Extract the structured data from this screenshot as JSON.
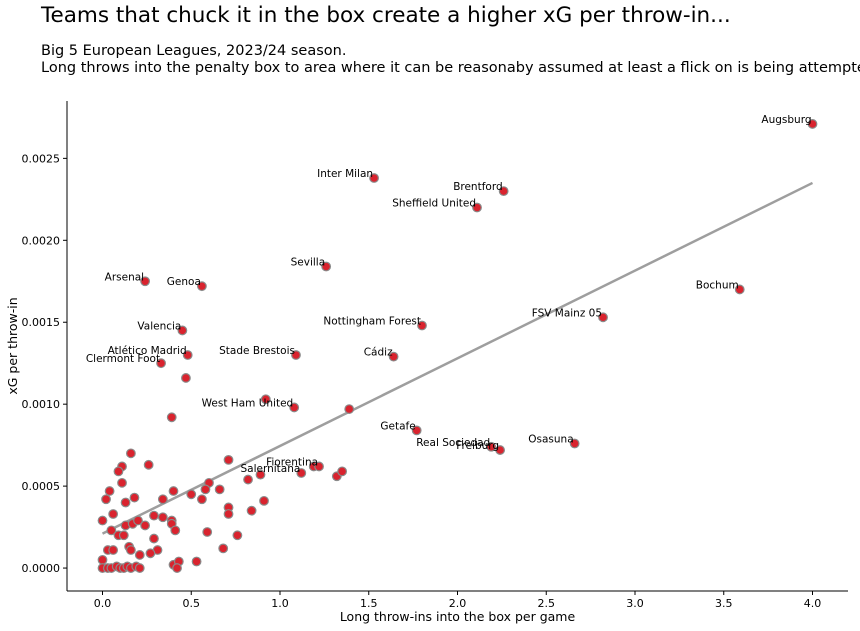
{
  "header": {
    "title": "Teams that chuck it in the box create a higher xG per throw-in...",
    "subtitle_line1": "Big 5 European Leagues, 2023/24 season.",
    "subtitle_line2": "Long throws into the penalty box to area where it can be reasonaby assumed at least a flick on is being attempted."
  },
  "colors": {
    "point_fill": "#d9232e",
    "point_edge": "#8a8a8a",
    "trend": "#9e9e9e"
  },
  "chart_data": {
    "type": "scatter",
    "title": "Teams that chuck it in the box create a higher xG per throw-in...",
    "xlabel": "Long throw-ins into the box per game",
    "ylabel": "xG per throw-in",
    "xlim": [
      -0.2,
      4.2
    ],
    "ylim": [
      -0.00014,
      0.00285
    ],
    "x_ticks": [
      "0.0",
      "0.5",
      "1.0",
      "1.5",
      "2.0",
      "2.5",
      "3.0",
      "3.5",
      "4.0"
    ],
    "y_ticks": [
      "0.0000",
      "0.0005",
      "0.0010",
      "0.0015",
      "0.0020",
      "0.0025"
    ],
    "grid": false,
    "trend_line": {
      "x": [
        0.0,
        4.0
      ],
      "y": [
        0.00021,
        0.00235
      ]
    },
    "labeled_points": [
      {
        "name": "Augsburg",
        "x": 4.0,
        "y": 0.00271
      },
      {
        "name": "Inter Milan",
        "x": 1.53,
        "y": 0.00238
      },
      {
        "name": "Brentford",
        "x": 2.26,
        "y": 0.0023
      },
      {
        "name": "Sheffield United",
        "x": 2.11,
        "y": 0.0022
      },
      {
        "name": "Sevilla",
        "x": 1.26,
        "y": 0.00184
      },
      {
        "name": "Arsenal",
        "x": 0.24,
        "y": 0.00175
      },
      {
        "name": "Genoa",
        "x": 0.56,
        "y": 0.00172
      },
      {
        "name": "Bochum",
        "x": 3.59,
        "y": 0.0017
      },
      {
        "name": "FSV Mainz 05",
        "x": 2.82,
        "y": 0.00153
      },
      {
        "name": "Nottingham Forest",
        "x": 1.8,
        "y": 0.00148
      },
      {
        "name": "Valencia",
        "x": 0.45,
        "y": 0.00145
      },
      {
        "name": "Atlético Madrid",
        "x": 0.48,
        "y": 0.0013
      },
      {
        "name": "Stade Brestois",
        "x": 1.09,
        "y": 0.0013
      },
      {
        "name": "Cádiz",
        "x": 1.64,
        "y": 0.00129
      },
      {
        "name": "Clermont Foot",
        "x": 0.33,
        "y": 0.00125
      },
      {
        "name": "West Ham United",
        "x": 1.08,
        "y": 0.00098
      },
      {
        "name": "Getafe",
        "x": 1.77,
        "y": 0.00084
      },
      {
        "name": "Osasuna",
        "x": 2.66,
        "y": 0.00076
      },
      {
        "name": "Real Sociedad",
        "x": 2.19,
        "y": 0.00074
      },
      {
        "name": "Freiburg",
        "x": 2.24,
        "y": 0.00072
      },
      {
        "name": "Fiorentina",
        "x": 1.22,
        "y": 0.00062
      },
      {
        "name": "Salernitana",
        "x": 1.12,
        "y": 0.00058
      }
    ],
    "other_points": [
      [
        0.47,
        0.00116
      ],
      [
        0.39,
        0.00092
      ],
      [
        0.92,
        0.00103
      ],
      [
        1.39,
        0.00097
      ],
      [
        1.19,
        0.00062
      ],
      [
        1.32,
        0.00056
      ],
      [
        1.35,
        0.00059
      ],
      [
        0.71,
        0.00066
      ],
      [
        0.26,
        0.00063
      ],
      [
        0.82,
        0.00054
      ],
      [
        0.89,
        0.00057
      ],
      [
        0.6,
        0.00052
      ],
      [
        0.66,
        0.00048
      ],
      [
        0.58,
        0.00048
      ],
      [
        0.5,
        0.00045
      ],
      [
        0.56,
        0.00042
      ],
      [
        0.91,
        0.00041
      ],
      [
        0.71,
        0.00037
      ],
      [
        0.71,
        0.00033
      ],
      [
        0.84,
        0.00035
      ],
      [
        0.59,
        0.00022
      ],
      [
        0.76,
        0.0002
      ],
      [
        0.68,
        0.00012
      ],
      [
        0.53,
        4e-05
      ],
      [
        0.4,
        0.00047
      ],
      [
        0.34,
        0.00042
      ],
      [
        0.29,
        0.00032
      ],
      [
        0.34,
        0.00031
      ],
      [
        0.39,
        0.00029
      ],
      [
        0.39,
        0.00027
      ],
      [
        0.41,
        0.00023
      ],
      [
        0.29,
        0.00018
      ],
      [
        0.31,
        0.00011
      ],
      [
        0.27,
        9e-05
      ],
      [
        0.21,
        8e-05
      ],
      [
        0.4,
        2e-05
      ],
      [
        0.43,
        4e-05
      ],
      [
        0.42,
        0.0
      ],
      [
        0.16,
        0.0007
      ],
      [
        0.11,
        0.00062
      ],
      [
        0.09,
        0.00059
      ],
      [
        0.11,
        0.00052
      ],
      [
        0.18,
        0.00043
      ],
      [
        0.13,
        0.0004
      ],
      [
        0.02,
        0.00042
      ],
      [
        0.04,
        0.00047
      ],
      [
        0.06,
        0.00033
      ],
      [
        0.0,
        0.00029
      ],
      [
        0.05,
        0.00023
      ],
      [
        0.09,
        0.0002
      ],
      [
        0.12,
        0.0002
      ],
      [
        0.13,
        0.00026
      ],
      [
        0.17,
        0.00027
      ],
      [
        0.2,
        0.00029
      ],
      [
        0.24,
        0.00026
      ],
      [
        0.15,
        0.00013
      ],
      [
        0.16,
        0.00011
      ],
      [
        0.03,
        0.00011
      ],
      [
        0.06,
        0.00011
      ],
      [
        0.0,
        5e-05
      ],
      [
        0.0,
        0.0
      ],
      [
        0.03,
        0.0
      ],
      [
        0.05,
        0.0
      ],
      [
        0.08,
        1e-05
      ],
      [
        0.1,
        0.0
      ],
      [
        0.12,
        0.0
      ],
      [
        0.14,
        1e-05
      ],
      [
        0.16,
        0.0
      ],
      [
        0.19,
        1e-05
      ],
      [
        0.21,
        0.0
      ]
    ]
  }
}
